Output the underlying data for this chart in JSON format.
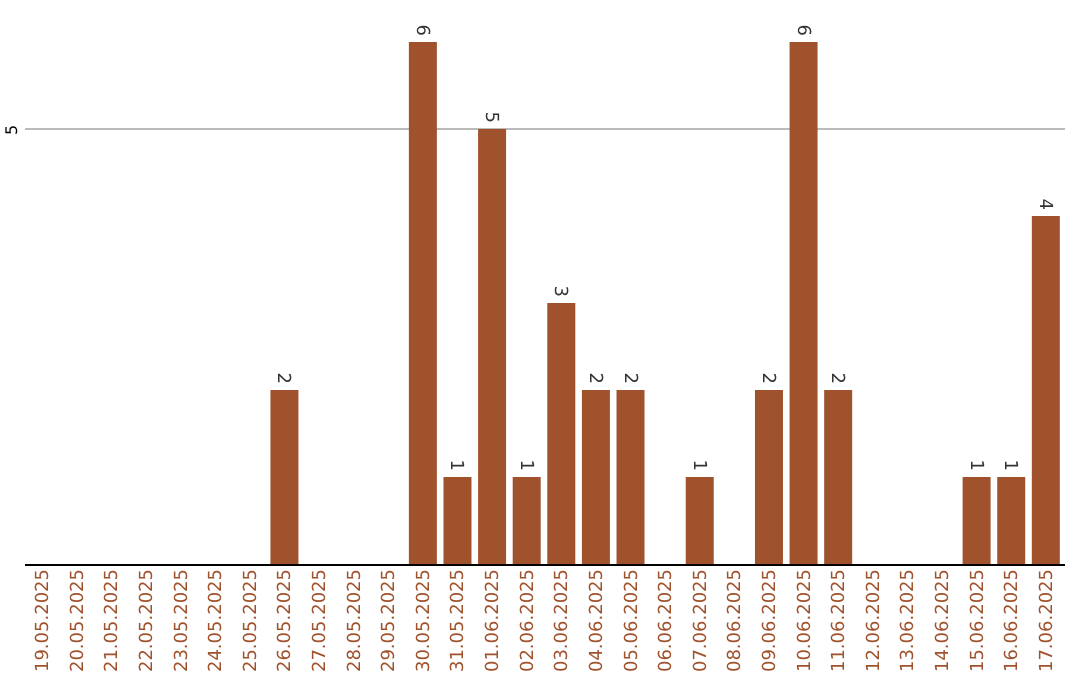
{
  "chart_data": {
    "type": "bar",
    "categories": [
      "19.05.2025",
      "20.05.2025",
      "21.05.2025",
      "22.05.2025",
      "23.05.2025",
      "24.05.2025",
      "25.05.2025",
      "26.05.2025",
      "27.05.2025",
      "28.05.2025",
      "29.05.2025",
      "30.05.2025",
      "31.05.2025",
      "01.06.2025",
      "02.06.2025",
      "03.06.2025",
      "04.06.2025",
      "05.06.2025",
      "06.06.2025",
      "07.06.2025",
      "08.06.2025",
      "09.06.2025",
      "10.06.2025",
      "11.06.2025",
      "12.06.2025",
      "13.06.2025",
      "14.06.2025",
      "15.06.2025",
      "16.06.2025",
      "17.06.2025"
    ],
    "values": [
      0,
      0,
      0,
      0,
      0,
      0,
      0,
      2,
      0,
      0,
      0,
      6,
      1,
      5,
      1,
      3,
      2,
      2,
      0,
      1,
      0,
      2,
      6,
      2,
      0,
      0,
      0,
      1,
      1,
      4
    ],
    "value_labels": [
      null,
      null,
      null,
      null,
      null,
      null,
      null,
      "2",
      null,
      null,
      null,
      "6",
      "1",
      "5",
      "1",
      "3",
      "2",
      "2",
      null,
      "1",
      null,
      "2",
      "6",
      "2",
      null,
      null,
      null,
      "1",
      "1",
      "4"
    ],
    "color": "#a0522d",
    "ylim": [
      0,
      6
    ],
    "yticks": [
      5
    ],
    "grid": "y"
  }
}
